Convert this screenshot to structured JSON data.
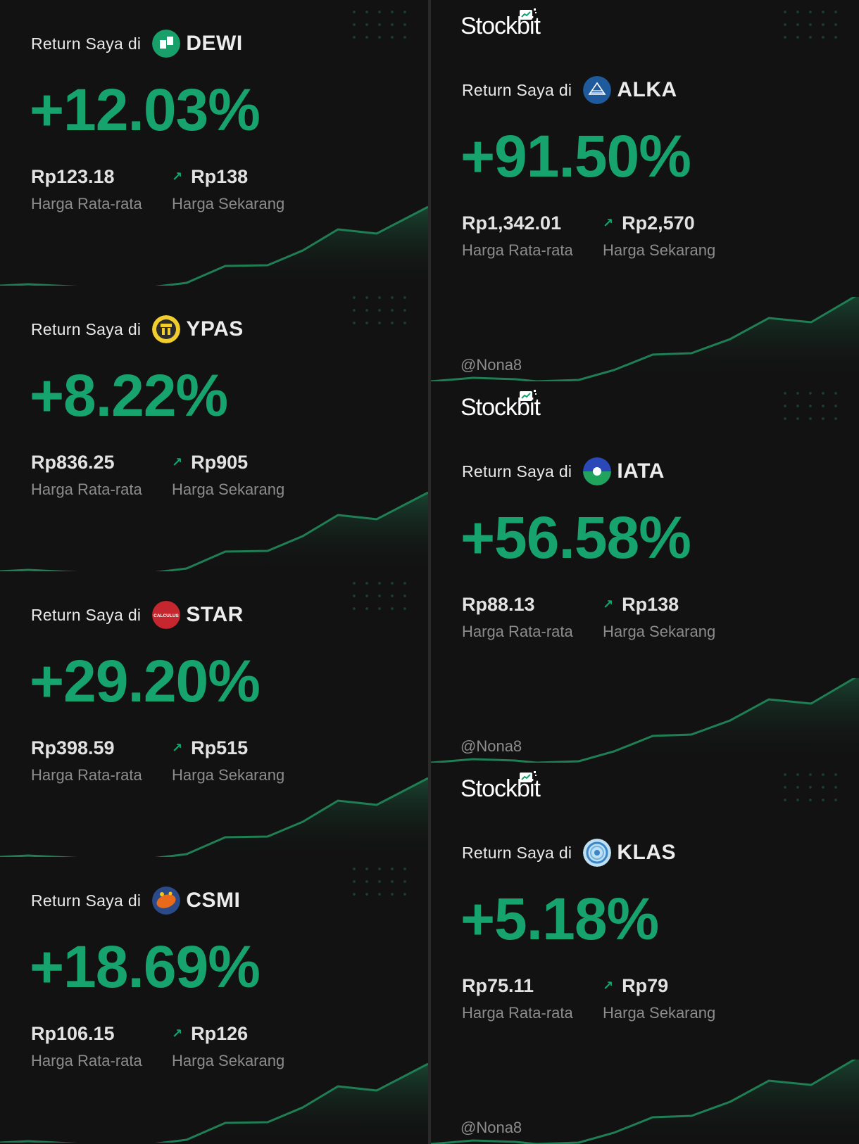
{
  "brand": "Stockbit",
  "return_prefix": "Return Saya di",
  "avg_label": "Harga Rata-rata",
  "cur_label": "Harga Sekarang",
  "handle": "@Nona8",
  "colors": {
    "accent": "#16a36d",
    "background": "#121212",
    "muted": "#8c8c8c"
  },
  "left_cards": [
    {
      "ticker": "DEWI",
      "logo_icon": "dewi-logo-icon",
      "return": "+12.03%",
      "avg_price": "Rp123.18",
      "cur_price": "Rp138"
    },
    {
      "ticker": "YPAS",
      "logo_icon": "ypas-logo-icon",
      "return": "+8.22%",
      "avg_price": "Rp836.25",
      "cur_price": "Rp905"
    },
    {
      "ticker": "STAR",
      "logo_icon": "star-logo-icon",
      "logo_text": "CALCULUS",
      "return": "+29.20%",
      "avg_price": "Rp398.59",
      "cur_price": "Rp515"
    },
    {
      "ticker": "CSMI",
      "logo_icon": "csmi-logo-icon",
      "return": "+18.69%",
      "avg_price": "Rp106.15",
      "cur_price": "Rp126"
    }
  ],
  "right_cards": [
    {
      "ticker": "ALKA",
      "logo_icon": "alka-logo-icon",
      "return": "+91.50%",
      "avg_price": "Rp1,342.01",
      "cur_price": "Rp2,570"
    },
    {
      "ticker": "IATA",
      "logo_icon": "iata-logo-icon",
      "return": "+56.58%",
      "avg_price": "Rp88.13",
      "cur_price": "Rp138"
    },
    {
      "ticker": "KLAS",
      "logo_icon": "klas-logo-icon",
      "return": "+5.18%",
      "avg_price": "Rp75.11",
      "cur_price": "Rp79"
    }
  ]
}
